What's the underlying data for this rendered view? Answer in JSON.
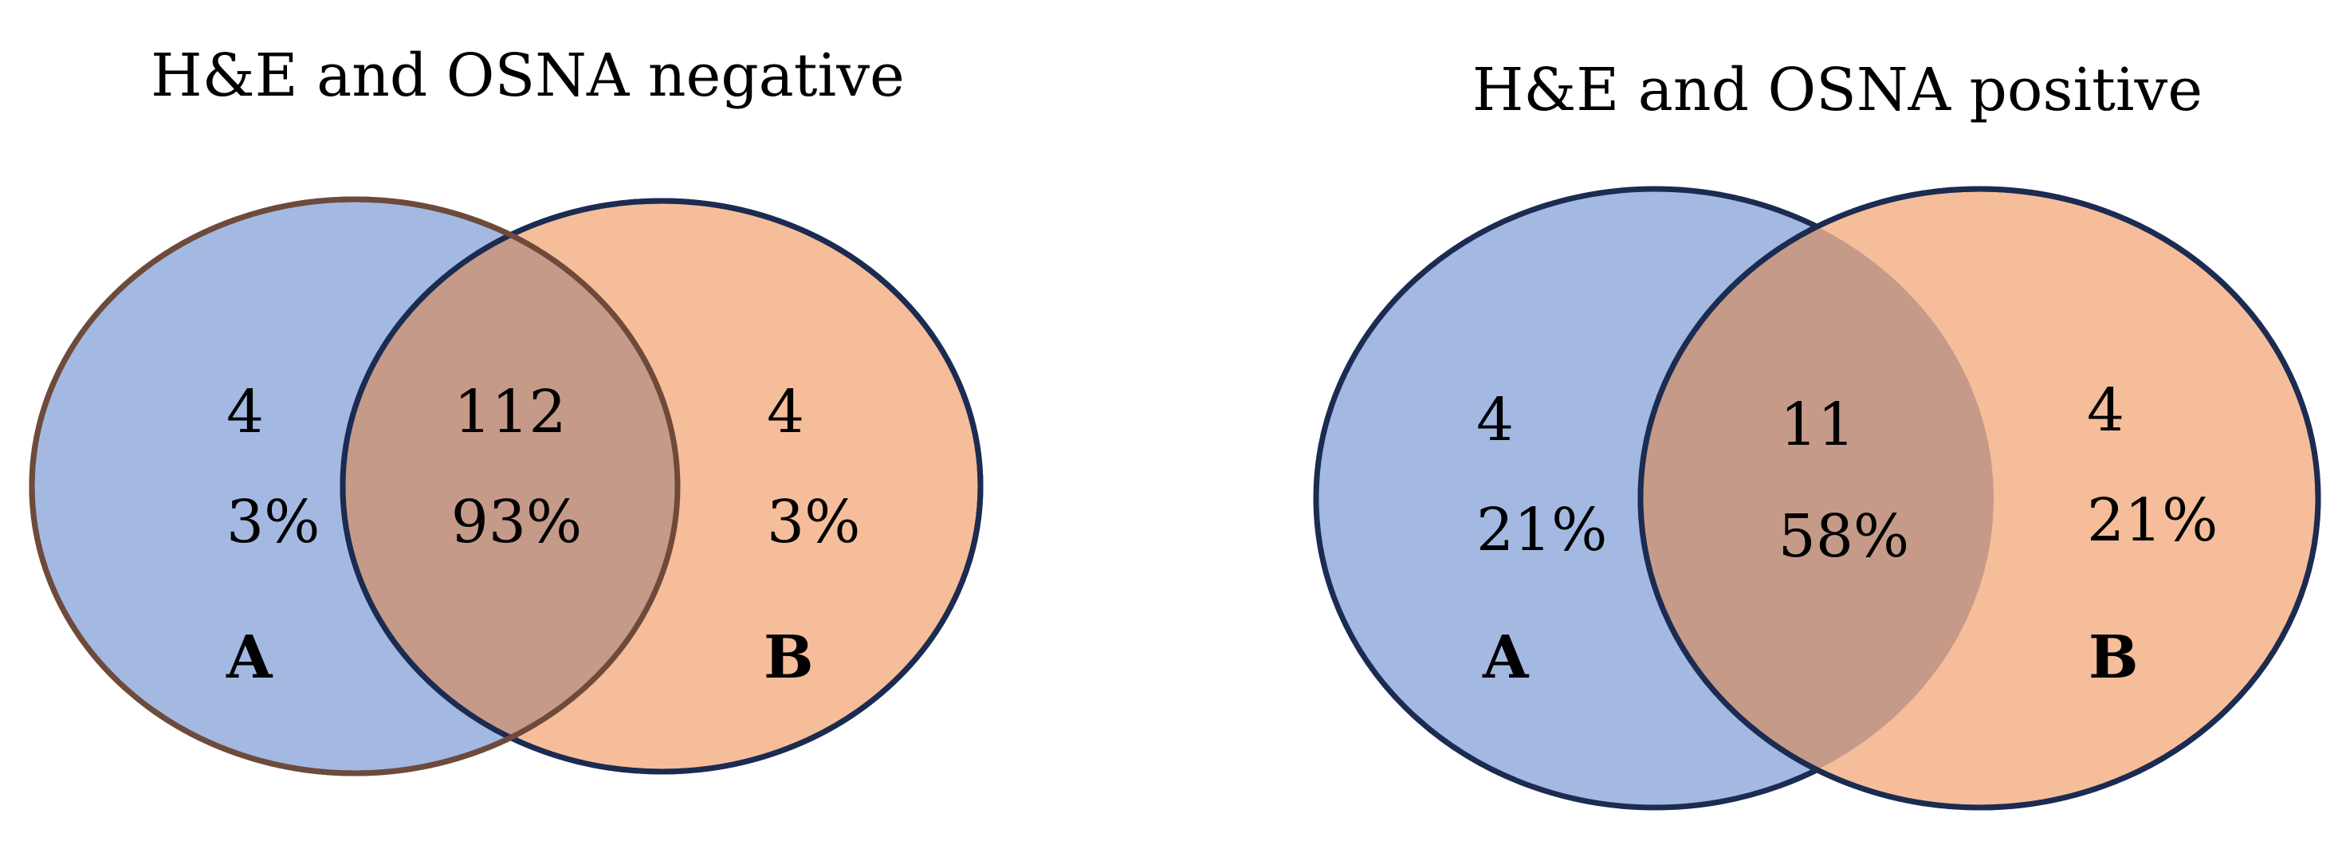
{
  "colors": {
    "set_a_fill": "#a3b9e1",
    "set_b_fill": "#f5bd99",
    "overlap_fill": "#c59a88",
    "outline": "#1b2b52",
    "overlap_outline": "#6f4a3a"
  },
  "diagrams": [
    {
      "title": "H&E and OSNA negative",
      "a_only": {
        "count": "4",
        "percent": "3%"
      },
      "overlap": {
        "count": "112",
        "percent": "93%"
      },
      "b_only": {
        "count": "4",
        "percent": "3%"
      },
      "label_a": "A",
      "label_b": "B"
    },
    {
      "title": "H&E and OSNA positive",
      "a_only": {
        "count": "4",
        "percent": "21%"
      },
      "overlap": {
        "count": "11",
        "percent": "58%"
      },
      "b_only": {
        "count": "4",
        "percent": "21%"
      },
      "label_a": "A",
      "label_b": "B"
    }
  ]
}
